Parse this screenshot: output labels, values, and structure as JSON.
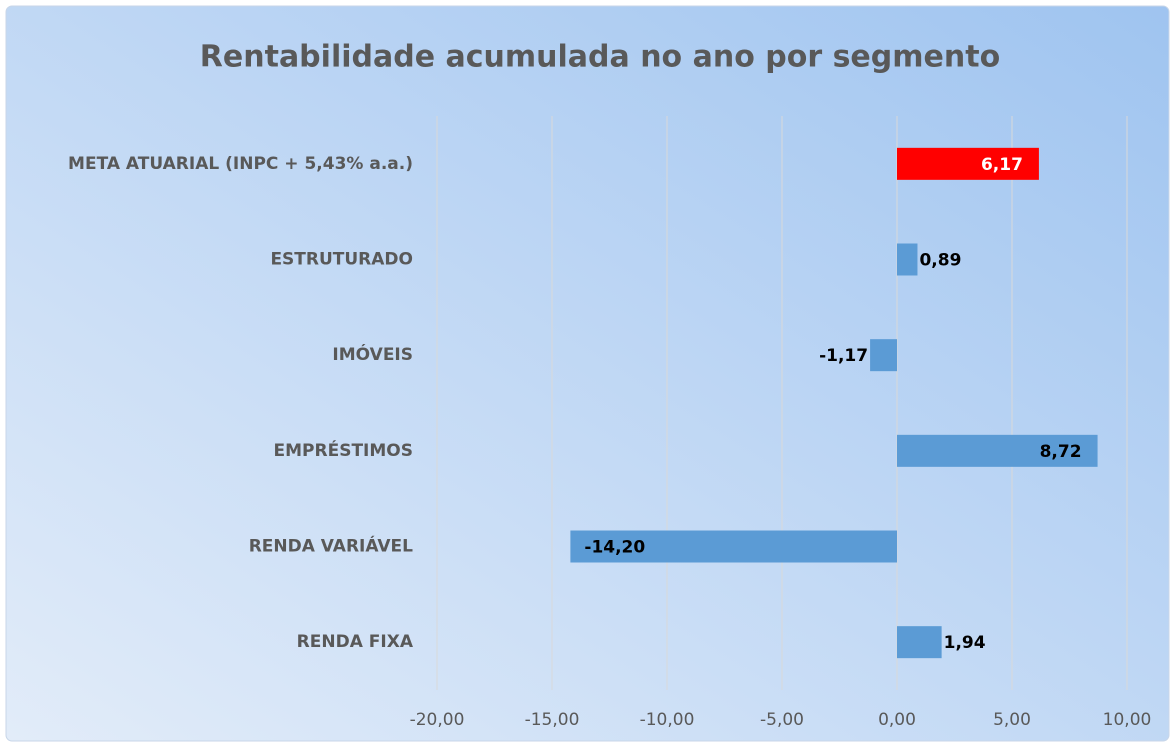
{
  "chart_data": {
    "type": "barh",
    "title": "Rentabilidade acumulada no ano por segmento",
    "categories": [
      "META ATUARIAL (INPC + 5,43% a.a.)",
      "ESTRUTURADO",
      "IMÓVEIS",
      "EMPRÉSTIMOS",
      "RENDA VARIÁVEL",
      "RENDA FIXA"
    ],
    "values": [
      6.17,
      0.89,
      -1.17,
      8.72,
      -14.2,
      1.94
    ],
    "value_labels": [
      "6,17",
      "0,89",
      "-1,17",
      "8,72",
      "-14,20",
      "1,94"
    ],
    "colors": [
      "#ff0000",
      "#5b9bd5",
      "#5b9bd5",
      "#5b9bd5",
      "#5b9bd5",
      "#5b9bd5"
    ],
    "xlim": [
      -20,
      10
    ],
    "xticks": [
      {
        "value": -20,
        "label": "-20,00"
      },
      {
        "value": -15,
        "label": "-15,00"
      },
      {
        "value": -10,
        "label": "-10,00"
      },
      {
        "value": -5,
        "label": "-5,00"
      },
      {
        "value": 0,
        "label": "0,00"
      },
      {
        "value": 5,
        "label": "5,00"
      },
      {
        "value": 10,
        "label": "10,00"
      }
    ],
    "grid": true
  }
}
